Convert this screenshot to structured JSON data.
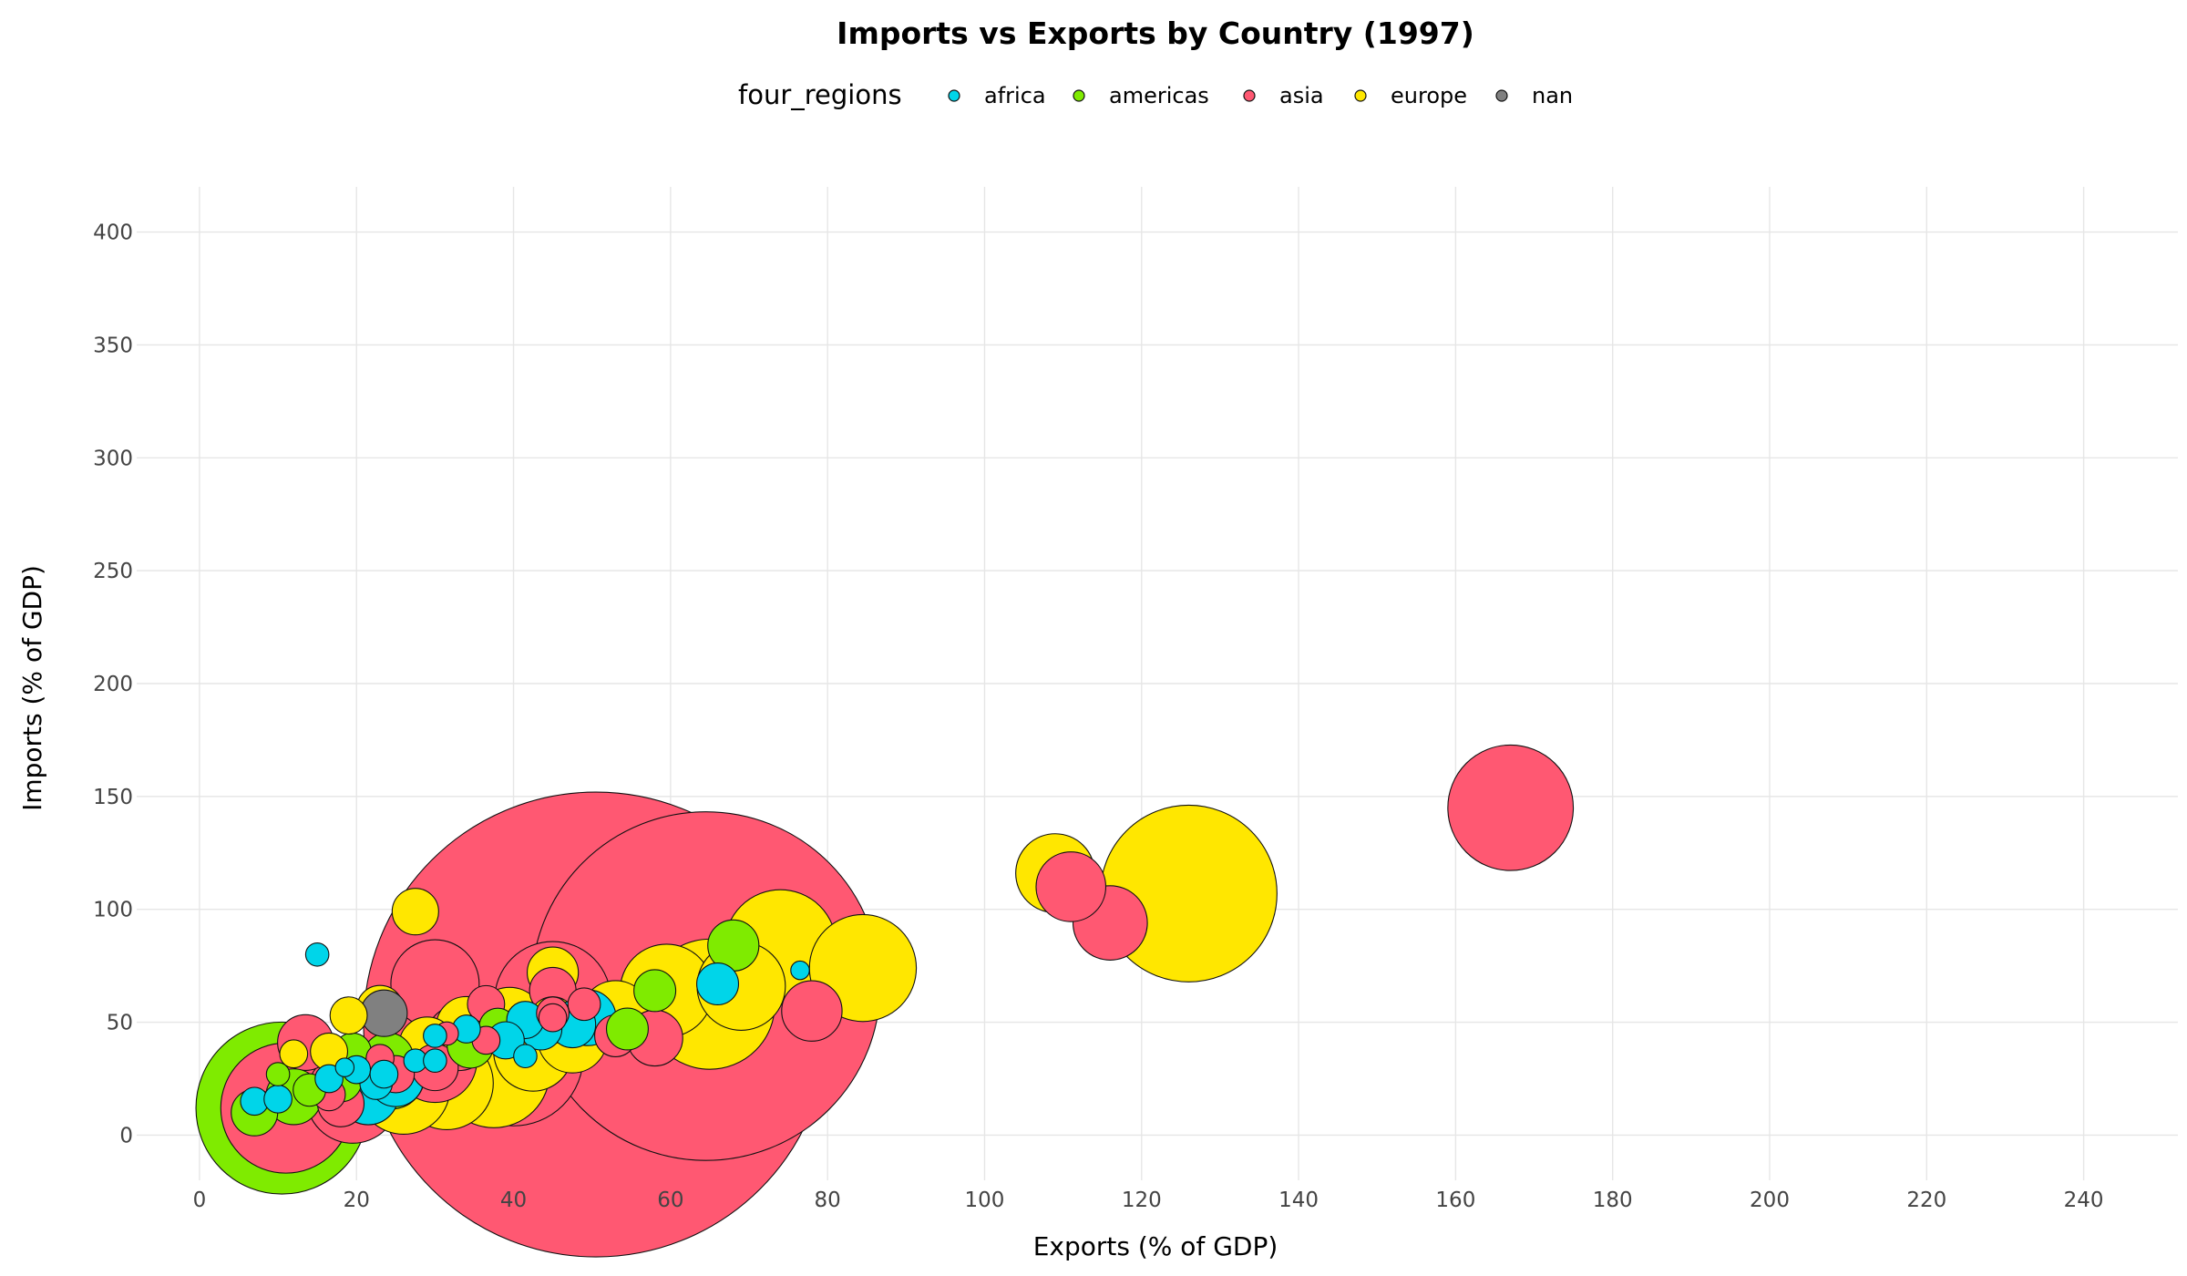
{
  "chart_data": {
    "type": "scatter",
    "title": "Imports vs Exports by Country (1997)",
    "xlabel": "Exports (% of GDP)",
    "ylabel": "Imports (% of GDP)",
    "xlim": [
      -8,
      252
    ],
    "ylim": [
      -20,
      420
    ],
    "x_ticks": [
      0,
      20,
      40,
      60,
      80,
      100,
      120,
      140,
      160,
      180,
      200,
      220,
      240
    ],
    "y_ticks": [
      0,
      50,
      100,
      150,
      200,
      250,
      300,
      350,
      400
    ],
    "grid": true,
    "legend": {
      "title": "four_regions",
      "placement": "top-center",
      "entries": [
        {
          "name": "africa",
          "color": "#00D5E9"
        },
        {
          "name": "americas",
          "color": "#7FEB00"
        },
        {
          "name": "asia",
          "color": "#FF5872"
        },
        {
          "name": "europe",
          "color": "#FFE700"
        },
        {
          "name": "nan",
          "color": "#808080"
        }
      ]
    },
    "size_encoding": "population (relative bubble area)",
    "series": [
      {
        "name": "asia",
        "color": "#FF5872",
        "points": [
          {
            "x": 50.5,
            "y": 49,
            "s": 100
          },
          {
            "x": 64.5,
            "y": 66,
            "s": 75
          },
          {
            "x": 40,
            "y": 35,
            "s": 30
          },
          {
            "x": 11,
            "y": 12,
            "s": 28
          },
          {
            "x": 45,
            "y": 60,
            "s": 25
          },
          {
            "x": 19.5,
            "y": 17,
            "s": 20
          },
          {
            "x": 30,
            "y": 33,
            "s": 18
          },
          {
            "x": 33,
            "y": 43,
            "s": 14
          },
          {
            "x": 167,
            "y": 145,
            "s": 27
          },
          {
            "x": 116,
            "y": 94,
            "s": 16
          },
          {
            "x": 111,
            "y": 110,
            "s": 15
          },
          {
            "x": 78,
            "y": 55,
            "s": 13
          },
          {
            "x": 30,
            "y": 67,
            "s": 19
          },
          {
            "x": 13.5,
            "y": 41,
            "s": 12
          },
          {
            "x": 58,
            "y": 43,
            "s": 12
          },
          {
            "x": 45,
            "y": 64,
            "s": 10
          },
          {
            "x": 53,
            "y": 44,
            "s": 9
          },
          {
            "x": 36.5,
            "y": 58,
            "s": 8
          },
          {
            "x": 30,
            "y": 30,
            "s": 10
          },
          {
            "x": 18,
            "y": 14,
            "s": 10
          },
          {
            "x": 16.5,
            "y": 18,
            "s": 7
          },
          {
            "x": 49,
            "y": 58,
            "s": 7
          },
          {
            "x": 45,
            "y": 54,
            "s": 7
          },
          {
            "x": 36.5,
            "y": 42,
            "s": 6
          },
          {
            "x": 23,
            "y": 34,
            "s": 6
          },
          {
            "x": 31.5,
            "y": 45,
            "s": 5
          },
          {
            "x": 45,
            "y": 52,
            "s": 6
          },
          {
            "x": 25,
            "y": 27,
            "s": 8
          }
        ]
      },
      {
        "name": "americas",
        "color": "#7FEB00",
        "points": [
          {
            "x": 10.5,
            "y": 12,
            "s": 37
          },
          {
            "x": 24.5,
            "y": 26,
            "s": 14
          },
          {
            "x": 12,
            "y": 17,
            "s": 12
          },
          {
            "x": 7,
            "y": 10,
            "s": 10
          },
          {
            "x": 68,
            "y": 84,
            "s": 11
          },
          {
            "x": 58,
            "y": 64,
            "s": 9
          },
          {
            "x": 54.5,
            "y": 47,
            "s": 9
          },
          {
            "x": 34.5,
            "y": 40,
            "s": 10
          },
          {
            "x": 19.5,
            "y": 37,
            "s": 8
          },
          {
            "x": 14,
            "y": 20,
            "s": 7
          },
          {
            "x": 10,
            "y": 27,
            "s": 5
          },
          {
            "x": 18,
            "y": 24,
            "s": 9
          },
          {
            "x": 24,
            "y": 34,
            "s": 11
          },
          {
            "x": 38,
            "y": 48,
            "s": 8
          }
        ]
      },
      {
        "name": "europe",
        "color": "#FFE700",
        "points": [
          {
            "x": 126,
            "y": 107,
            "s": 38
          },
          {
            "x": 84.5,
            "y": 74,
            "s": 23
          },
          {
            "x": 74,
            "y": 84,
            "s": 24
          },
          {
            "x": 65,
            "y": 58,
            "s": 28
          },
          {
            "x": 69,
            "y": 66,
            "s": 19
          },
          {
            "x": 59.5,
            "y": 64,
            "s": 20
          },
          {
            "x": 109,
            "y": 116,
            "s": 17
          },
          {
            "x": 37.5,
            "y": 28,
            "s": 24
          },
          {
            "x": 31.5,
            "y": 23,
            "s": 20
          },
          {
            "x": 26,
            "y": 21,
            "s": 20
          },
          {
            "x": 42.5,
            "y": 37,
            "s": 17
          },
          {
            "x": 47.5,
            "y": 43,
            "s": 15
          },
          {
            "x": 53,
            "y": 53,
            "s": 15
          },
          {
            "x": 39.5,
            "y": 50,
            "s": 15
          },
          {
            "x": 34,
            "y": 48,
            "s": 13
          },
          {
            "x": 27.5,
            "y": 99,
            "s": 10
          },
          {
            "x": 45,
            "y": 72,
            "s": 11
          },
          {
            "x": 23,
            "y": 56,
            "s": 10
          },
          {
            "x": 19,
            "y": 53,
            "s": 8
          },
          {
            "x": 16.5,
            "y": 37,
            "s": 8
          },
          {
            "x": 12,
            "y": 36,
            "s": 6
          },
          {
            "x": 45,
            "y": 51,
            "s": 10
          },
          {
            "x": 29,
            "y": 40,
            "s": 12
          }
        ]
      },
      {
        "name": "africa",
        "color": "#00D5E9",
        "points": [
          {
            "x": 21.5,
            "y": 18,
            "s": 13
          },
          {
            "x": 25,
            "y": 25,
            "s": 12
          },
          {
            "x": 49.5,
            "y": 52,
            "s": 12
          },
          {
            "x": 47.5,
            "y": 49,
            "s": 10
          },
          {
            "x": 43.5,
            "y": 47,
            "s": 9
          },
          {
            "x": 66,
            "y": 67,
            "s": 9
          },
          {
            "x": 41.5,
            "y": 51,
            "s": 8
          },
          {
            "x": 39,
            "y": 42,
            "s": 8
          },
          {
            "x": 34,
            "y": 47,
            "s": 6
          },
          {
            "x": 22.5,
            "y": 23,
            "s": 7
          },
          {
            "x": 20,
            "y": 29,
            "s": 6
          },
          {
            "x": 23.5,
            "y": 27,
            "s": 6
          },
          {
            "x": 27.5,
            "y": 33,
            "s": 5
          },
          {
            "x": 30,
            "y": 33,
            "s": 5
          },
          {
            "x": 30,
            "y": 44,
            "s": 5
          },
          {
            "x": 41.5,
            "y": 35,
            "s": 5
          },
          {
            "x": 15,
            "y": 80,
            "s": 5
          },
          {
            "x": 76.5,
            "y": 73,
            "s": 4
          },
          {
            "x": 7,
            "y": 15,
            "s": 6
          },
          {
            "x": 10,
            "y": 16,
            "s": 6
          },
          {
            "x": 16.5,
            "y": 25,
            "s": 6
          },
          {
            "x": 18.5,
            "y": 30,
            "s": 4
          }
        ]
      },
      {
        "name": "nan",
        "color": "#808080",
        "points": [
          {
            "x": 23.5,
            "y": 54,
            "s": 10
          }
        ]
      }
    ]
  }
}
